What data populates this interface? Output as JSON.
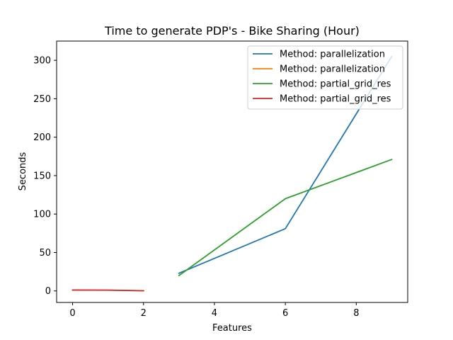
{
  "chart_data": {
    "type": "line",
    "title": "Time to generate PDP's - Bike Sharing (Hour)",
    "xlabel": "Features",
    "ylabel": "Seconds",
    "xlim": [
      -0.45,
      9.45
    ],
    "ylim": [
      -15,
      325
    ],
    "xticks": [
      0,
      2,
      4,
      6,
      8
    ],
    "yticks": [
      0,
      50,
      100,
      150,
      200,
      250,
      300
    ],
    "grid": false,
    "legend_position": "top-right",
    "series": [
      {
        "name": "Method: parallelization",
        "color": "#1f77b4",
        "x": [
          3,
          6,
          9
        ],
        "y": [
          23,
          81,
          305
        ]
      },
      {
        "name": "Method: parallelization",
        "color": "#ff7f0e",
        "x": [
          0,
          1,
          2
        ],
        "y": [
          1.2,
          1.0,
          0.2
        ]
      },
      {
        "name": "Method: partial_grid_res",
        "color": "#2ca02c",
        "x": [
          3,
          6,
          9
        ],
        "y": [
          20,
          120,
          171
        ]
      },
      {
        "name": "Method: partial_grid_res",
        "color": "#d62728",
        "x": [
          0,
          1,
          2
        ],
        "y": [
          1.2,
          1.0,
          0.2
        ]
      }
    ]
  }
}
